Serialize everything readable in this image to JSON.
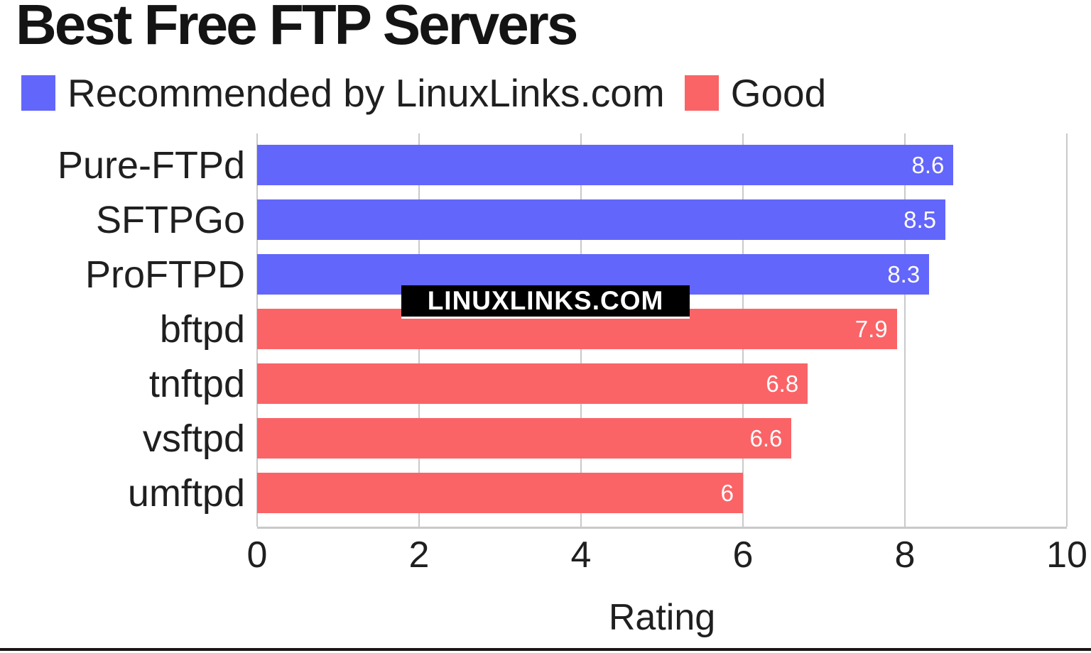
{
  "page": {
    "watermark": "LINUXLINKS.COM"
  },
  "legend": {
    "items": [
      {
        "label": "Recommended by LinuxLinks.com",
        "color": "#6366fa"
      },
      {
        "label": "Good",
        "color": "#fa6467"
      }
    ]
  },
  "chart_data": {
    "type": "bar",
    "orientation": "horizontal",
    "title": "Best Free FTP Servers",
    "xlabel": "Rating",
    "xlim": [
      0,
      10
    ],
    "xticks": [
      "0",
      "2",
      "4",
      "6",
      "8",
      "10"
    ],
    "grid": "vertical",
    "legend_position": "top-left",
    "categories": [
      "Pure-FTPd",
      "SFTPGo",
      "ProFTPD",
      "bftpd",
      "tnftpd",
      "vsftpd",
      "umftpd"
    ],
    "series": [
      {
        "name": "Recommended by LinuxLinks.com",
        "color": "#6366fa",
        "values": [
          8.6,
          8.5,
          8.3,
          null,
          null,
          null,
          null
        ]
      },
      {
        "name": "Good",
        "color": "#fa6467",
        "values": [
          null,
          null,
          null,
          7.9,
          6.8,
          6.6,
          6
        ]
      }
    ],
    "value_labels": [
      "8.6",
      "8.5",
      "8.3",
      "7.9",
      "6.8",
      "6.6",
      "6"
    ],
    "colors": {
      "recommended": "#6366fa",
      "good": "#fa6467",
      "gridline": "#c9c9c9",
      "text": "#1f1f1f",
      "value_text": "#ffffff",
      "watermark_bg": "#000000",
      "watermark_text": "#ffffff"
    }
  }
}
